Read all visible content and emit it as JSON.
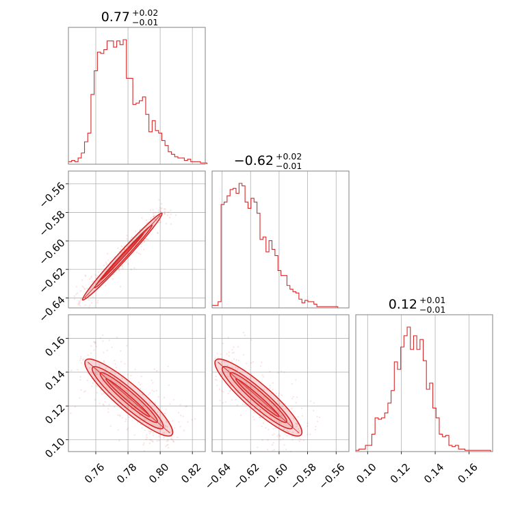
{
  "chart_data": {
    "type": "corner",
    "color": "#d62728",
    "grid": true,
    "parameters": [
      {
        "index": 0,
        "median": "0.77",
        "plus": "+0.02",
        "minus": "−0.01",
        "range": [
          0.743,
          0.828
        ]
      },
      {
        "index": 1,
        "median": "−0.62",
        "plus": "+0.02",
        "minus": "−0.01",
        "range": [
          -0.647,
          -0.551
        ]
      },
      {
        "index": 2,
        "median": "0.12",
        "plus": "+0.01",
        "minus": "−0.01",
        "range": [
          0.093,
          0.174
        ]
      }
    ],
    "ticks": {
      "p0": {
        "values": [
          0.76,
          0.78,
          0.8,
          0.82
        ],
        "labels": [
          "0.76",
          "0.78",
          "0.80",
          "0.82"
        ]
      },
      "p1": {
        "values": [
          -0.64,
          -0.62,
          -0.6,
          -0.58,
          -0.56
        ],
        "labels": [
          "−0.64",
          "−0.62",
          "−0.60",
          "−0.58",
          "−0.56"
        ]
      },
      "p2": {
        "values": [
          0.1,
          0.12,
          0.14,
          0.16
        ],
        "labels": [
          "0.10",
          "0.12",
          "0.14",
          "0.16"
        ]
      }
    },
    "histograms": [
      {
        "param": 0,
        "bins": [
          0.743,
          0.745,
          0.747,
          0.749,
          0.751,
          0.753,
          0.755,
          0.757,
          0.759,
          0.761,
          0.763,
          0.765,
          0.767,
          0.769,
          0.771,
          0.773,
          0.775,
          0.777,
          0.779,
          0.781,
          0.783,
          0.785,
          0.787,
          0.789,
          0.791,
          0.793,
          0.795,
          0.797,
          0.799,
          0.801,
          0.803,
          0.805,
          0.807,
          0.809,
          0.811,
          0.813,
          0.815,
          0.817,
          0.819,
          0.821,
          0.823,
          0.825,
          0.827,
          0.829
        ],
        "counts": [
          0.02,
          0.03,
          0.02,
          0.05,
          0.09,
          0.18,
          0.25,
          0.56,
          0.75,
          0.9,
          0.89,
          0.92,
          0.99,
          0.99,
          0.94,
          0.99,
          0.96,
          1.0,
          0.69,
          0.69,
          0.48,
          0.49,
          0.51,
          0.54,
          0.4,
          0.26,
          0.35,
          0.27,
          0.25,
          0.19,
          0.15,
          0.1,
          0.08,
          0.06,
          0.05,
          0.05,
          0.03,
          0.04,
          0.02,
          0.02,
          0.02,
          0.01,
          0.01
        ]
      },
      {
        "param": 1,
        "bins": [
          -0.647,
          -0.6449,
          -0.6428,
          -0.6407,
          -0.6386,
          -0.6365,
          -0.6344,
          -0.6323,
          -0.6302,
          -0.6281,
          -0.626,
          -0.6239,
          -0.6218,
          -0.6197,
          -0.6176,
          -0.6155,
          -0.6134,
          -0.6113,
          -0.6092,
          -0.6071,
          -0.605,
          -0.6029,
          -0.6008,
          -0.5987,
          -0.5966,
          -0.5945,
          -0.5924,
          -0.5903,
          -0.5882,
          -0.5861,
          -0.584,
          -0.5819,
          -0.5798,
          -0.5777,
          -0.5756,
          -0.5735,
          -0.5714,
          -0.5693,
          -0.5672,
          -0.5651,
          -0.563,
          -0.5609,
          -0.5588
        ],
        "counts": [
          0.02,
          0.02,
          0.05,
          0.83,
          0.85,
          0.9,
          0.95,
          0.96,
          0.92,
          1.0,
          0.98,
          0.85,
          0.8,
          0.88,
          0.85,
          0.76,
          0.55,
          0.57,
          0.45,
          0.54,
          0.47,
          0.42,
          0.3,
          0.26,
          0.26,
          0.18,
          0.15,
          0.13,
          0.12,
          0.07,
          0.04,
          0.06,
          0.05,
          0.05,
          0.03,
          0.01,
          0.01,
          0.01,
          0.01,
          0.01,
          0.01,
          0.01
        ]
      },
      {
        "param": 2,
        "bins": [
          0.093,
          0.0949,
          0.0968,
          0.0987,
          0.1006,
          0.1025,
          0.1044,
          0.1063,
          0.1082,
          0.1101,
          0.112,
          0.1139,
          0.1158,
          0.1177,
          0.1196,
          0.1215,
          0.1234,
          0.1253,
          0.1272,
          0.1291,
          0.131,
          0.1329,
          0.1348,
          0.1367,
          0.1386,
          0.1405,
          0.1424,
          0.1443,
          0.1462,
          0.1481,
          0.15,
          0.1519,
          0.1538,
          0.1557,
          0.1576,
          0.1595,
          0.1614,
          0.1633,
          0.1652,
          0.1671,
          0.169,
          0.1709,
          0.1728
        ],
        "counts": [
          0.01,
          0.02,
          0.02,
          0.05,
          0.05,
          0.14,
          0.27,
          0.26,
          0.27,
          0.31,
          0.39,
          0.49,
          0.72,
          0.66,
          0.84,
          0.93,
          1.0,
          0.82,
          0.93,
          0.82,
          0.9,
          0.73,
          0.5,
          0.55,
          0.35,
          0.27,
          0.14,
          0.12,
          0.13,
          0.05,
          0.04,
          0.05,
          0.02,
          0.02,
          0.01,
          0.01,
          0.01,
          0.01,
          0.01,
          0.01,
          0.01,
          0.01
        ]
      }
    ],
    "joint_contours": [
      {
        "x_param": 0,
        "y_param": 1,
        "ridge_x": [
          0.753,
          0.8
        ],
        "ridge_y": [
          -0.64,
          -0.582
        ],
        "outer_halfwidth": 0.0032,
        "levels": [
          1.0,
          0.55,
          0.25
        ]
      },
      {
        "x_param": 0,
        "y_param": 2,
        "ridge_x": [
          0.755,
          0.806
        ],
        "ridge_y": [
          0.146,
          0.104
        ],
        "outer_halfwidth": 0.0075,
        "levels": [
          1.0,
          0.7,
          0.45,
          0.2
        ]
      },
      {
        "x_param": 1,
        "y_param": 2,
        "ridge_x": [
          -0.643,
          -0.586
        ],
        "ridge_y": [
          0.146,
          0.104
        ],
        "outer_halfwidth": 0.0075,
        "levels": [
          1.0,
          0.7,
          0.45,
          0.2
        ]
      }
    ]
  }
}
